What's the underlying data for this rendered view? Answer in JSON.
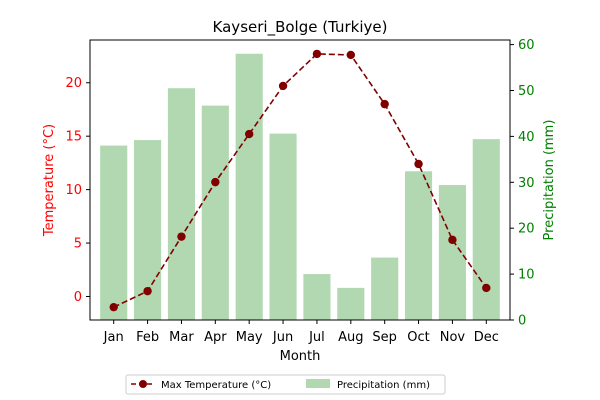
{
  "chart_data": {
    "type": "bar+line",
    "title": "Kayseri_Bolge (Turkiye)",
    "xlabel": "Month",
    "ylabel_left": "Temperature (°C)",
    "ylabel_right": "Precipitation (mm)",
    "categories": [
      "Jan",
      "Feb",
      "Mar",
      "Apr",
      "May",
      "Jun",
      "Jul",
      "Aug",
      "Sep",
      "Oct",
      "Nov",
      "Dec"
    ],
    "ylim_left": [
      -2.2,
      24.0
    ],
    "yticks_left": [
      0,
      5,
      10,
      15,
      20
    ],
    "ylim_right": [
      0,
      61
    ],
    "yticks_right": [
      0,
      10,
      20,
      30,
      40,
      50,
      60
    ],
    "series": [
      {
        "name": "Max Temperature (°C)",
        "type": "line",
        "axis": "left",
        "color": "#800000",
        "values": [
          -1.0,
          0.5,
          5.6,
          10.7,
          15.2,
          19.7,
          22.7,
          22.6,
          18.0,
          12.4,
          5.3,
          0.8
        ]
      },
      {
        "name": "Precipitation (mm)",
        "type": "bar",
        "axis": "right",
        "color": "#b1d8b1",
        "values": [
          38.0,
          39.2,
          50.5,
          46.7,
          58.0,
          40.6,
          10.0,
          7.0,
          13.6,
          32.4,
          29.4,
          39.4
        ]
      }
    ],
    "legend_position": "bottom-center",
    "colors": {
      "left_axis": "#ff0000",
      "right_axis": "#008000",
      "line": "#800000",
      "bars": "#b1d8b1"
    }
  }
}
